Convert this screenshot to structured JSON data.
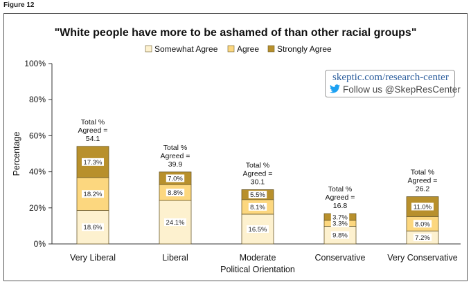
{
  "figure_label": "Figure 12",
  "watermark": {
    "line1": "skeptic.com/research-center",
    "line2": "Follow us @SkepResCenter",
    "icon": "twitter-bird-icon"
  },
  "colors": {
    "somewhat": "#fdf1cf",
    "agree": "#fcd77f",
    "strongly": "#b8902c",
    "outline": "#6b5a2a"
  },
  "chart_data": {
    "type": "bar",
    "stacked": true,
    "title": "\"White people have more to be ashamed of than other racial groups\"",
    "xlabel": "Political Orientation",
    "ylabel": "Percentage",
    "ylim": [
      0,
      100
    ],
    "yticks": [
      0,
      20,
      40,
      60,
      80,
      100
    ],
    "ytick_labels": [
      "0%",
      "20%",
      "40%",
      "60%",
      "80%",
      "100%"
    ],
    "legend_position": "top-center",
    "categories": [
      "Very Liberal",
      "Liberal",
      "Moderate",
      "Conservative",
      "Very Conservative"
    ],
    "series": [
      {
        "name": "Somewhat Agree",
        "values": [
          18.6,
          24.1,
          16.5,
          9.8,
          7.2
        ],
        "labels": [
          "18.6%",
          "24.1%",
          "16.5%",
          "9.8%",
          "7.2%"
        ]
      },
      {
        "name": "Agree",
        "values": [
          18.2,
          8.8,
          8.1,
          3.3,
          8.0
        ],
        "labels": [
          "18.2%",
          "8.8%",
          "8.1%",
          "3.3%",
          "8.0%"
        ]
      },
      {
        "name": "Strongly Agree",
        "values": [
          17.3,
          7.0,
          5.5,
          3.7,
          11.0
        ],
        "labels": [
          "17.3%",
          "7.0%",
          "5.5%",
          "3.7%",
          "11.0%"
        ]
      }
    ],
    "totals": [
      54.1,
      39.9,
      30.1,
      16.8,
      26.2
    ],
    "total_labels": [
      [
        "Total %",
        "Agreed =",
        "54.1"
      ],
      [
        "Total %",
        "Agreed =",
        "39.9"
      ],
      [
        "Total %",
        "Agreed =",
        "30.1"
      ],
      [
        "Total %",
        "Agreed =",
        "16.8"
      ],
      [
        "Total %",
        "Agreed =",
        "26.2"
      ]
    ]
  }
}
